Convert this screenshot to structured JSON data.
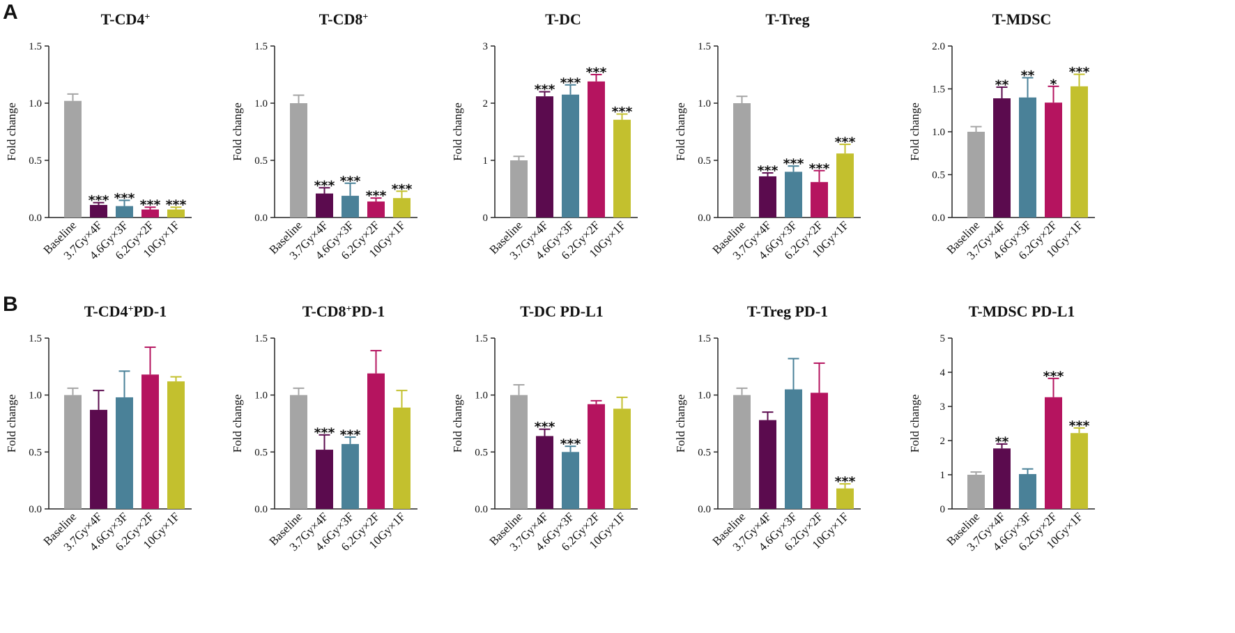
{
  "panel_labels": [
    "A",
    "B"
  ],
  "chart_data": [
    {
      "type": "bar",
      "title": "T-CD4",
      "title_sup": "+",
      "title_suffix": "",
      "ylabel": "Fold change",
      "ylim": [
        0,
        1.5
      ],
      "yticks": [
        "0.0",
        "0.5",
        "1.0",
        "1.5"
      ],
      "categories": [
        "Baseline",
        "3.7Gy×4F",
        "4.6Gy×3F",
        "6.2Gy×2F",
        "10Gy×1F"
      ],
      "values": [
        1.02,
        0.11,
        0.1,
        0.07,
        0.07
      ],
      "errors": [
        0.06,
        0.02,
        0.05,
        0.02,
        0.02
      ],
      "significance": [
        "",
        "***",
        "***",
        "***",
        "***"
      ],
      "colors": [
        "#a5a5a5",
        "#5b0b4e",
        "#4a8198",
        "#b5145f",
        "#c3c02e"
      ]
    },
    {
      "type": "bar",
      "title": "T-CD8",
      "title_sup": "+",
      "title_suffix": "",
      "ylabel": "Fold change",
      "ylim": [
        0,
        1.5
      ],
      "yticks": [
        "0.0",
        "0.5",
        "1.0",
        "1.5"
      ],
      "categories": [
        "Baseline",
        "3.7Gy×4F",
        "4.6Gy×3F",
        "6.2Gy×2F",
        "10Gy×1F"
      ],
      "values": [
        1.0,
        0.21,
        0.19,
        0.14,
        0.17
      ],
      "errors": [
        0.07,
        0.05,
        0.11,
        0.03,
        0.06
      ],
      "significance": [
        "",
        "***",
        "***",
        "***",
        "***"
      ],
      "colors": [
        "#a5a5a5",
        "#5b0b4e",
        "#4a8198",
        "#b5145f",
        "#c3c02e"
      ]
    },
    {
      "type": "bar",
      "title": "T-DC",
      "title_sup": "",
      "title_suffix": "",
      "ylabel": "Fold change",
      "ylim": [
        0,
        3
      ],
      "yticks": [
        "0",
        "1",
        "2",
        "3"
      ],
      "categories": [
        "Baseline",
        "3.7Gy×4F",
        "4.6Gy×3F",
        "6.2Gy×2F",
        "10Gy×1F"
      ],
      "values": [
        1.0,
        2.12,
        2.15,
        2.38,
        1.71
      ],
      "errors": [
        0.07,
        0.08,
        0.17,
        0.12,
        0.1
      ],
      "significance": [
        "",
        "***",
        "***",
        "***",
        "***"
      ],
      "colors": [
        "#a5a5a5",
        "#5b0b4e",
        "#4a8198",
        "#b5145f",
        "#c3c02e"
      ]
    },
    {
      "type": "bar",
      "title": "T-Treg",
      "title_sup": "",
      "title_suffix": "",
      "ylabel": "Fold change",
      "ylim": [
        0,
        1.5
      ],
      "yticks": [
        "0.0",
        "0.5",
        "1.0",
        "1.5"
      ],
      "categories": [
        "Baseline",
        "3.7Gy×4F",
        "4.6Gy×3F",
        "6.2Gy×2F",
        "10Gy×1F"
      ],
      "values": [
        1.0,
        0.36,
        0.4,
        0.31,
        0.56
      ],
      "errors": [
        0.06,
        0.03,
        0.05,
        0.1,
        0.08
      ],
      "significance": [
        "",
        "***",
        "***",
        "***",
        "***"
      ],
      "colors": [
        "#a5a5a5",
        "#5b0b4e",
        "#4a8198",
        "#b5145f",
        "#c3c02e"
      ]
    },
    {
      "type": "bar",
      "title": "T-MDSC",
      "title_sup": "",
      "title_suffix": "",
      "ylabel": "Fold change",
      "ylim": [
        0,
        2.0
      ],
      "yticks": [
        "0.0",
        "0.5",
        "1.0",
        "1.5",
        "2.0"
      ],
      "categories": [
        "Baseline",
        "3.7Gy×4F",
        "4.6Gy×3F",
        "6.2Gy×2F",
        "10Gy×1F"
      ],
      "values": [
        1.0,
        1.39,
        1.4,
        1.34,
        1.53
      ],
      "errors": [
        0.06,
        0.13,
        0.23,
        0.19,
        0.14
      ],
      "significance": [
        "",
        "**",
        "**",
        "*",
        "***"
      ],
      "colors": [
        "#a5a5a5",
        "#5b0b4e",
        "#4a8198",
        "#b5145f",
        "#c3c02e"
      ]
    },
    {
      "type": "bar",
      "title": "T-CD4",
      "title_sup": "+",
      "title_suffix": "PD-1",
      "ylabel": "Fold change",
      "ylim": [
        0,
        1.5
      ],
      "yticks": [
        "0.0",
        "0.5",
        "1.0",
        "1.5"
      ],
      "categories": [
        "Baseline",
        "3.7Gy×4F",
        "4.6Gy×3F",
        "6.2Gy×2F",
        "10Gy×1F"
      ],
      "values": [
        1.0,
        0.87,
        0.98,
        1.18,
        1.12
      ],
      "errors": [
        0.06,
        0.17,
        0.23,
        0.24,
        0.04
      ],
      "significance": [
        "",
        "",
        "",
        "",
        ""
      ],
      "colors": [
        "#a5a5a5",
        "#5b0b4e",
        "#4a8198",
        "#b5145f",
        "#c3c02e"
      ]
    },
    {
      "type": "bar",
      "title": "T-CD8",
      "title_sup": "+",
      "title_suffix": "PD-1",
      "ylabel": "Fold change",
      "ylim": [
        0,
        1.5
      ],
      "yticks": [
        "0.0",
        "0.5",
        "1.0",
        "1.5"
      ],
      "categories": [
        "Baseline",
        "3.7Gy×4F",
        "4.6Gy×3F",
        "6.2Gy×2F",
        "10Gy×1F"
      ],
      "values": [
        1.0,
        0.52,
        0.57,
        1.19,
        0.89
      ],
      "errors": [
        0.06,
        0.13,
        0.06,
        0.2,
        0.15
      ],
      "significance": [
        "",
        "***",
        "***",
        "",
        ""
      ],
      "colors": [
        "#a5a5a5",
        "#5b0b4e",
        "#4a8198",
        "#b5145f",
        "#c3c02e"
      ]
    },
    {
      "type": "bar",
      "title": "T-DC PD-L1",
      "title_sup": "",
      "title_suffix": "",
      "ylabel": "Fold change",
      "ylim": [
        0,
        1.5
      ],
      "yticks": [
        "0.0",
        "0.5",
        "1.0",
        "1.5"
      ],
      "categories": [
        "Baseline",
        "3.7Gy×4F",
        "4.6Gy×3F",
        "6.2Gy×2F",
        "10Gy×1F"
      ],
      "values": [
        1.0,
        0.64,
        0.5,
        0.92,
        0.88
      ],
      "errors": [
        0.09,
        0.06,
        0.05,
        0.03,
        0.1
      ],
      "significance": [
        "",
        "***",
        "***",
        "",
        ""
      ],
      "colors": [
        "#a5a5a5",
        "#5b0b4e",
        "#4a8198",
        "#b5145f",
        "#c3c02e"
      ]
    },
    {
      "type": "bar",
      "title": "T-Treg PD-1",
      "title_sup": "",
      "title_suffix": "",
      "ylabel": "Fold change",
      "ylim": [
        0,
        1.5
      ],
      "yticks": [
        "0.0",
        "0.5",
        "1.0",
        "1.5"
      ],
      "categories": [
        "Baseline",
        "3.7Gy×4F",
        "4.6Gy×3F",
        "6.2Gy×2F",
        "10Gy×1F"
      ],
      "values": [
        1.0,
        0.78,
        1.05,
        1.02,
        0.18
      ],
      "errors": [
        0.06,
        0.07,
        0.27,
        0.26,
        0.04
      ],
      "significance": [
        "",
        "",
        "",
        "",
        "***"
      ],
      "colors": [
        "#a5a5a5",
        "#5b0b4e",
        "#4a8198",
        "#b5145f",
        "#c3c02e"
      ]
    },
    {
      "type": "bar",
      "title": "T-MDSC PD-L1",
      "title_sup": "",
      "title_suffix": "",
      "ylabel": "Fold change",
      "ylim": [
        0,
        5
      ],
      "yticks": [
        "0",
        "1",
        "2",
        "3",
        "4",
        "5"
      ],
      "categories": [
        "Baseline",
        "3.7Gy×4F",
        "4.6Gy×3F",
        "6.2Gy×2F",
        "10Gy×1F"
      ],
      "values": [
        1.0,
        1.77,
        1.02,
        3.27,
        2.22
      ],
      "errors": [
        0.08,
        0.13,
        0.15,
        0.55,
        0.15
      ],
      "significance": [
        "",
        "**",
        "",
        "***",
        "***"
      ],
      "colors": [
        "#a5a5a5",
        "#5b0b4e",
        "#4a8198",
        "#b5145f",
        "#c3c02e"
      ]
    }
  ]
}
